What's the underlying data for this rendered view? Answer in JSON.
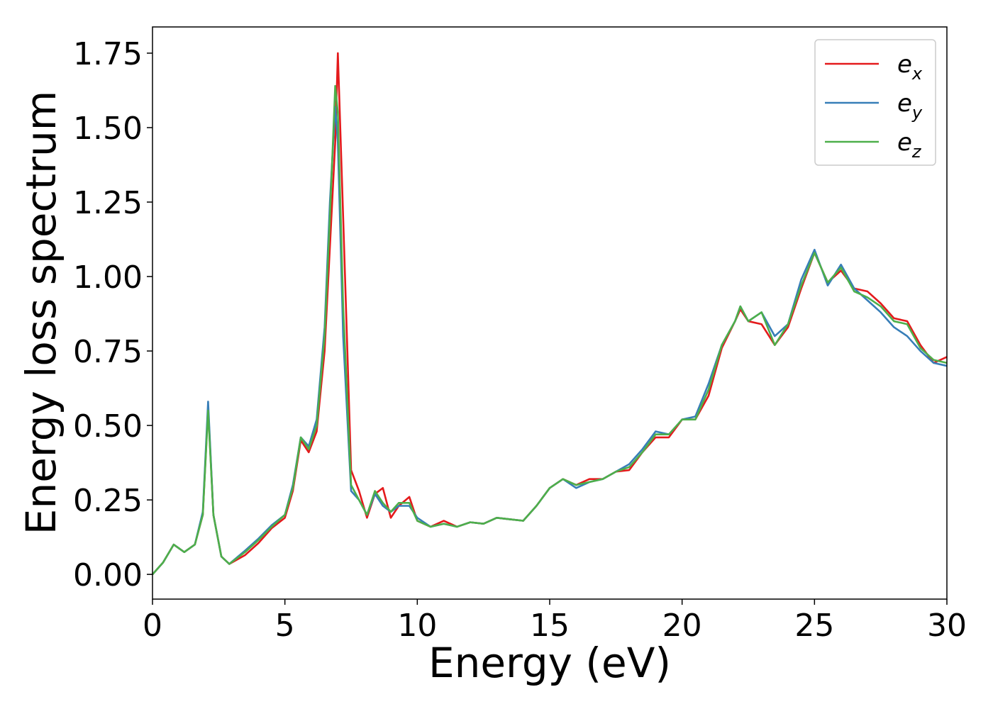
{
  "chart_data": {
    "type": "line",
    "x_label": "Energy (eV)",
    "y_label": "Energy loss spectrum",
    "xlim": [
      0,
      30
    ],
    "ylim": [
      -0.083,
      1.838
    ],
    "xticks": [
      0,
      5,
      10,
      15,
      20,
      25,
      30
    ],
    "yticks": [
      {
        "value": 0,
        "label": "0.00"
      },
      0.25,
      {
        "value": 0.5,
        "label": "0.50"
      },
      0.75,
      {
        "value": 1,
        "label": "1.00"
      },
      1.25,
      {
        "value": 1.5,
        "label": "1.50"
      },
      1.75
    ],
    "legend": "upper right",
    "x": [
      0,
      0.4,
      0.8,
      1.2,
      1.6,
      1.9,
      2.1,
      2.3,
      2.6,
      2.9,
      3.5,
      4,
      4.5,
      5,
      5.3,
      5.6,
      5.9,
      6.2,
      6.5,
      6.7,
      6.9,
      7.0,
      7.2,
      7.5,
      7.8,
      8.1,
      8.4,
      8.7,
      9.0,
      9.3,
      9.7,
      10,
      10.5,
      11,
      11.5,
      12,
      12.5,
      13,
      13.5,
      14,
      14.5,
      15,
      15.5,
      16,
      16.5,
      17,
      17.5,
      18,
      18.5,
      19,
      19.5,
      20,
      20.5,
      21,
      21.5,
      22,
      22.2,
      22.5,
      23,
      23.5,
      24,
      24.5,
      25,
      25.5,
      26,
      26.5,
      27,
      27.5,
      28,
      28.5,
      29,
      29.5,
      30
    ],
    "series": [
      {
        "name": "e_x",
        "color": "#e41a1c",
        "values": [
          0,
          0.04,
          0.1,
          0.075,
          0.1,
          0.2,
          0.56,
          0.2,
          0.06,
          0.035,
          0.065,
          0.105,
          0.155,
          0.19,
          0.28,
          0.45,
          0.41,
          0.48,
          0.75,
          1.1,
          1.45,
          1.75,
          1.2,
          0.35,
          0.28,
          0.19,
          0.27,
          0.29,
          0.19,
          0.23,
          0.26,
          0.18,
          0.16,
          0.18,
          0.16,
          0.175,
          0.17,
          0.19,
          0.185,
          0.18,
          0.23,
          0.29,
          0.32,
          0.3,
          0.32,
          0.32,
          0.345,
          0.35,
          0.41,
          0.46,
          0.46,
          0.52,
          0.52,
          0.6,
          0.76,
          0.85,
          0.89,
          0.85,
          0.84,
          0.77,
          0.83,
          0.96,
          1.08,
          0.98,
          1.02,
          0.96,
          0.95,
          0.91,
          0.86,
          0.85,
          0.77,
          0.71,
          0.73
        ]
      },
      {
        "name": "e_y",
        "color": "#377eb8",
        "values": [
          0,
          0.04,
          0.1,
          0.075,
          0.1,
          0.21,
          0.58,
          0.2,
          0.06,
          0.035,
          0.08,
          0.12,
          0.165,
          0.2,
          0.3,
          0.46,
          0.43,
          0.52,
          0.83,
          1.25,
          1.57,
          1.45,
          0.8,
          0.28,
          0.25,
          0.2,
          0.27,
          0.23,
          0.21,
          0.23,
          0.23,
          0.19,
          0.16,
          0.17,
          0.16,
          0.175,
          0.17,
          0.19,
          0.185,
          0.18,
          0.23,
          0.29,
          0.32,
          0.29,
          0.31,
          0.32,
          0.345,
          0.37,
          0.42,
          0.48,
          0.47,
          0.52,
          0.53,
          0.64,
          0.77,
          0.85,
          0.9,
          0.85,
          0.88,
          0.8,
          0.84,
          0.99,
          1.09,
          0.97,
          1.04,
          0.96,
          0.92,
          0.88,
          0.83,
          0.8,
          0.75,
          0.71,
          0.7
        ]
      },
      {
        "name": "e_z",
        "color": "#4daf4a",
        "values": [
          0,
          0.04,
          0.1,
          0.075,
          0.1,
          0.2,
          0.55,
          0.2,
          0.06,
          0.035,
          0.075,
          0.115,
          0.16,
          0.2,
          0.29,
          0.46,
          0.42,
          0.5,
          0.8,
          1.2,
          1.64,
          1.55,
          0.9,
          0.3,
          0.25,
          0.2,
          0.28,
          0.24,
          0.21,
          0.24,
          0.24,
          0.18,
          0.16,
          0.17,
          0.16,
          0.175,
          0.17,
          0.19,
          0.185,
          0.18,
          0.23,
          0.29,
          0.32,
          0.3,
          0.31,
          0.32,
          0.345,
          0.36,
          0.41,
          0.47,
          0.47,
          0.52,
          0.52,
          0.62,
          0.77,
          0.85,
          0.9,
          0.85,
          0.88,
          0.77,
          0.84,
          0.97,
          1.08,
          0.98,
          1.03,
          0.95,
          0.93,
          0.9,
          0.85,
          0.84,
          0.76,
          0.72,
          0.71
        ]
      }
    ]
  }
}
